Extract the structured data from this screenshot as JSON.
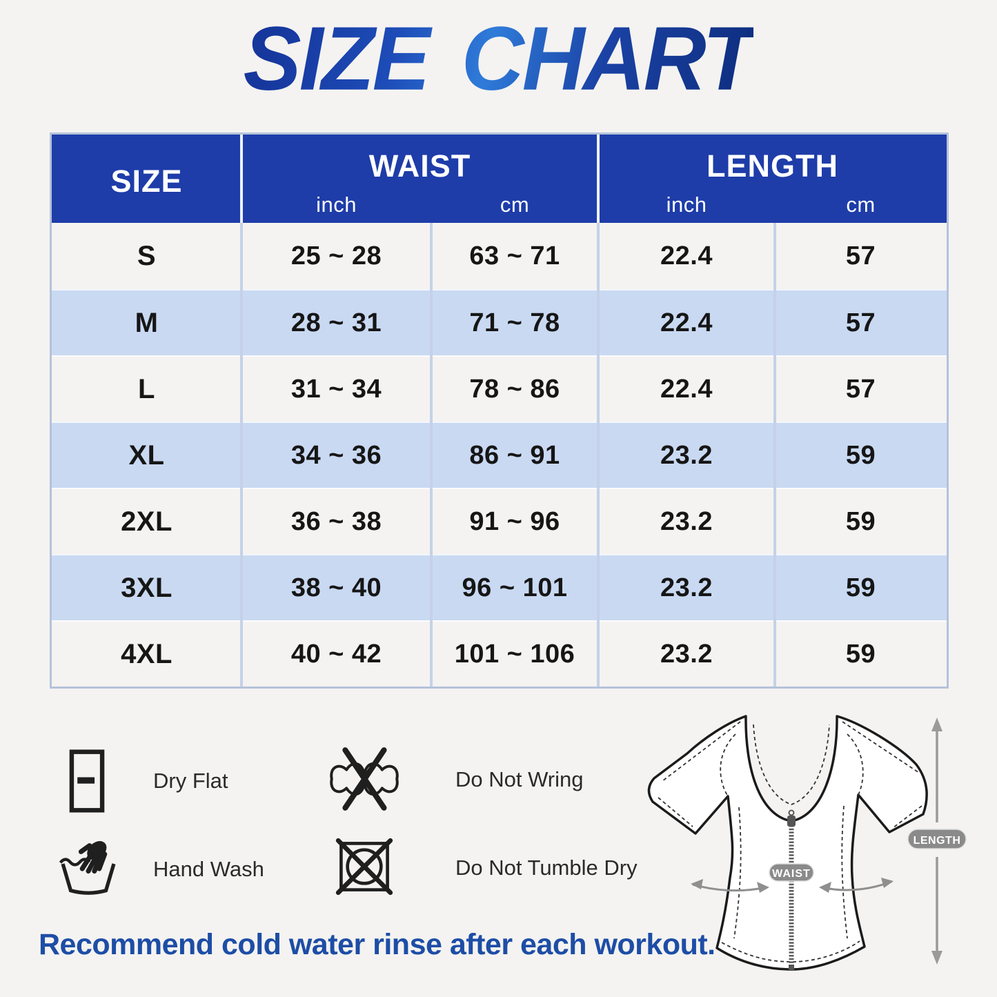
{
  "title": "SIZE CHART",
  "table": {
    "headers": {
      "size": "SIZE",
      "waist": "WAIST",
      "length": "LENGTH",
      "unit_inch": "inch",
      "unit_cm": "cm"
    },
    "rows": [
      {
        "size": "S",
        "waist_in": "25 ~ 28",
        "waist_cm": "63 ~ 71",
        "len_in": "22.4",
        "len_cm": "57"
      },
      {
        "size": "M",
        "waist_in": "28 ~ 31",
        "waist_cm": "71 ~ 78",
        "len_in": "22.4",
        "len_cm": "57"
      },
      {
        "size": "L",
        "waist_in": "31 ~ 34",
        "waist_cm": "78 ~ 86",
        "len_in": "22.4",
        "len_cm": "57"
      },
      {
        "size": "XL",
        "waist_in": "34 ~ 36",
        "waist_cm": "86 ~ 91",
        "len_in": "23.2",
        "len_cm": "59"
      },
      {
        "size": "2XL",
        "waist_in": "36 ~ 38",
        "waist_cm": "91 ~ 96",
        "len_in": "23.2",
        "len_cm": "59"
      },
      {
        "size": "3XL",
        "waist_in": "38 ~ 40",
        "waist_cm": "96 ~ 101",
        "len_in": "23.2",
        "len_cm": "59"
      },
      {
        "size": "4XL",
        "waist_in": "40 ~ 42",
        "waist_cm": "101 ~ 106",
        "len_in": "23.2",
        "len_cm": "59"
      }
    ]
  },
  "care": {
    "items": [
      {
        "icon": "dry-flat-icon",
        "label": "Dry Flat"
      },
      {
        "icon": "do-not-wring-icon",
        "label": "Do Not Wring"
      },
      {
        "icon": "hand-wash-icon",
        "label": "Hand Wash"
      },
      {
        "icon": "do-not-tumble-dry-icon",
        "label": "Do Not Tumble Dry"
      }
    ]
  },
  "diagram": {
    "waist_label": "WAIST",
    "length_label": "LENGTH"
  },
  "footer": {
    "note": "Recommend cold water rinse after each workout."
  },
  "colors": {
    "header_blue": "#1e3da9",
    "row_blue": "#c9d9f2",
    "row_gray": "#f4f3f1",
    "title_blue": "#1b43ad",
    "footer_blue": "#1d4da6",
    "pill_gray": "#8a8a8a"
  },
  "chart_data": {
    "type": "table",
    "title": "SIZE CHART",
    "columns": [
      "SIZE",
      "WAIST (inch)",
      "WAIST (cm)",
      "LENGTH (inch)",
      "LENGTH (cm)"
    ],
    "rows": [
      [
        "S",
        "25 ~ 28",
        "63 ~ 71",
        "22.4",
        "57"
      ],
      [
        "M",
        "28 ~ 31",
        "71 ~ 78",
        "22.4",
        "57"
      ],
      [
        "L",
        "31 ~ 34",
        "78 ~ 86",
        "22.4",
        "57"
      ],
      [
        "XL",
        "34 ~ 36",
        "86 ~ 91",
        "23.2",
        "59"
      ],
      [
        "2XL",
        "36 ~ 38",
        "91 ~ 96",
        "23.2",
        "59"
      ],
      [
        "3XL",
        "38 ~ 40",
        "96 ~ 101",
        "23.2",
        "59"
      ],
      [
        "4XL",
        "40 ~ 42",
        "101 ~ 106",
        "23.2",
        "59"
      ]
    ]
  }
}
